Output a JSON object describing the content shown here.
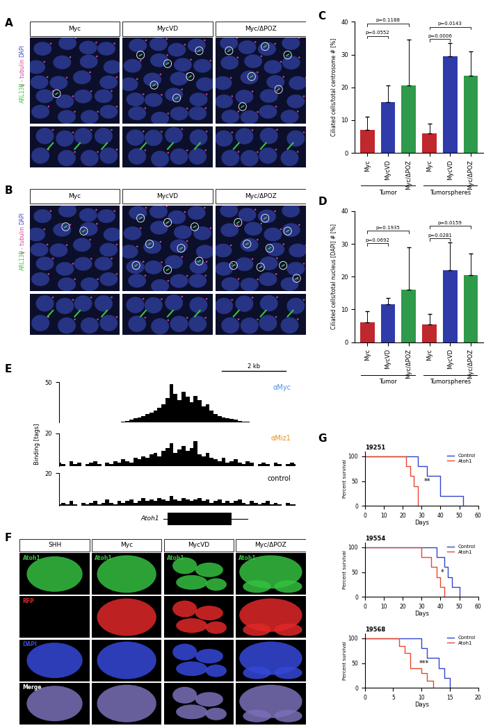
{
  "panel_labels": [
    "A",
    "B",
    "C",
    "D",
    "E",
    "F",
    "G"
  ],
  "micrographs": [
    {
      "columns": [
        "Myc",
        "MycVD",
        "Myc/ΔPOZ"
      ],
      "channels": [
        {
          "name": "DAPI",
          "color": "#3b4cc0"
        },
        {
          "name": "γ - tubulin",
          "color": "#d0409a"
        },
        {
          "name": "ARL13B",
          "color": "#3cc43c"
        }
      ]
    },
    {
      "columns": [
        "Myc",
        "MycVD",
        "Myc/ΔPOZ"
      ],
      "channels": [
        {
          "name": "DAPI",
          "color": "#3b4cc0"
        },
        {
          "name": "γ - tubulin",
          "color": "#d0409a"
        },
        {
          "name": "ARL13B",
          "color": "#3cc43c"
        }
      ]
    }
  ],
  "image_grid": {
    "columns": [
      "SHH",
      "Myc",
      "MycVD",
      "Myc/ΔPOZ"
    ],
    "rows": [
      {
        "name": "Atoh1",
        "color": "#35c040"
      },
      {
        "name": "RFP",
        "color": "#e02828"
      },
      {
        "name": "DAPI",
        "color": "#3548d8"
      },
      {
        "name": "Merge",
        "color": "#7a6fb8"
      }
    ]
  },
  "chart_data": [
    {
      "type": "bar",
      "ylabel": "Ciliated cells/total centrosome # [%]",
      "categories": [
        "Myc",
        "MycVD",
        "Myc/ΔPOZ",
        "Myc",
        "MycVD",
        "Myc/ΔPOZ"
      ],
      "groups": [
        "Tumor",
        "Tumorspheres"
      ],
      "values": [
        7,
        15.5,
        20.5,
        6,
        29.5,
        23.5
      ],
      "errors": [
        4,
        5,
        14,
        3,
        4,
        7.5
      ],
      "colors": [
        "#c0282d",
        "#2e3ba8",
        "#2f9a4a",
        "#c0282d",
        "#2e3ba8",
        "#2f9a4a"
      ],
      "ylim": [
        0,
        40
      ],
      "yticks": [
        0,
        10,
        20,
        30,
        40
      ],
      "comparisons": [
        {
          "pair": [
            0,
            1
          ],
          "label": "p=0.0552"
        },
        {
          "pair": [
            0,
            2
          ],
          "label": "p=0.1188"
        },
        {
          "pair": [
            3,
            4
          ],
          "label": "p=0.0006"
        },
        {
          "pair": [
            3,
            5
          ],
          "label": "p=0.0143"
        }
      ]
    },
    {
      "type": "bar",
      "ylabel": "Ciliated cells/total nucleus [DAPI] # [%]",
      "categories": [
        "Myc",
        "MycVD",
        "Myc/ΔPOZ",
        "Myc",
        "MycVD",
        "Myc/ΔPOZ"
      ],
      "groups": [
        "Tumor",
        "Tumorspheres"
      ],
      "values": [
        6,
        11.5,
        16,
        5.5,
        22,
        20.5
      ],
      "errors": [
        3.5,
        2,
        13,
        3,
        8.5,
        6.5
      ],
      "colors": [
        "#c0282d",
        "#2e3ba8",
        "#2f9a4a",
        "#c0282d",
        "#2e3ba8",
        "#2f9a4a"
      ],
      "ylim": [
        0,
        40
      ],
      "yticks": [
        0,
        10,
        20,
        30,
        40
      ],
      "comparisons": [
        {
          "pair": [
            0,
            1
          ],
          "label": "p=0.0692"
        },
        {
          "pair": [
            0,
            2
          ],
          "label": "p=0.1935"
        },
        {
          "pair": [
            3,
            4
          ],
          "label": "p=0.0281"
        },
        {
          "pair": [
            3,
            5
          ],
          "label": "p=0.0159"
        }
      ]
    },
    {
      "type": "track",
      "ylabel": "Binding [tags]",
      "scale_bar": "2 kb",
      "gene": {
        "name": "Atoh1",
        "start": 27,
        "end": 43
      },
      "series": [
        {
          "name": "αMyc",
          "color": "#4a90e2",
          "ylim": [
            0,
            50
          ],
          "yticks": [
            50
          ],
          "values": [
            0,
            0,
            0,
            0,
            0,
            0,
            0,
            0,
            0,
            0,
            0,
            0,
            0,
            0,
            0,
            0,
            1,
            2,
            3,
            5,
            6,
            8,
            10,
            12,
            15,
            18,
            22,
            30,
            48,
            35,
            28,
            38,
            32,
            25,
            33,
            28,
            20,
            22,
            15,
            10,
            8,
            6,
            5,
            4,
            3,
            2,
            1,
            1,
            0,
            0,
            0,
            0,
            0,
            0,
            0,
            0,
            0,
            0,
            0,
            0
          ]
        },
        {
          "name": "αMiz1",
          "color": "#e8901a",
          "ylim": [
            0,
            20
          ],
          "yticks": [
            20
          ],
          "values": [
            2,
            1,
            0,
            3,
            1,
            2,
            0,
            1,
            2,
            3,
            1,
            0,
            2,
            1,
            3,
            2,
            4,
            3,
            2,
            5,
            4,
            6,
            5,
            7,
            8,
            6,
            9,
            11,
            14,
            8,
            10,
            12,
            9,
            11,
            15,
            7,
            6,
            8,
            5,
            4,
            3,
            5,
            2,
            3,
            4,
            2,
            1,
            3,
            2,
            0,
            1,
            2,
            1,
            0,
            2,
            1,
            0,
            1,
            2,
            1
          ]
        },
        {
          "name": "control",
          "color": "#000000",
          "ylim": [
            0,
            20
          ],
          "yticks": [
            20
          ],
          "values": [
            1,
            2,
            1,
            3,
            1,
            0,
            2,
            1,
            2,
            3,
            1,
            2,
            4,
            2,
            1,
            3,
            2,
            3,
            4,
            2,
            3,
            5,
            3,
            4,
            3,
            5,
            4,
            3,
            6,
            4,
            3,
            5,
            4,
            3,
            4,
            5,
            3,
            4,
            2,
            3,
            4,
            2,
            3,
            2,
            3,
            4,
            2,
            1,
            3,
            2,
            1,
            2,
            3,
            1,
            2,
            1,
            0,
            2,
            1,
            1
          ]
        }
      ]
    },
    {
      "type": "step",
      "title": "19251",
      "xlabel": "Days",
      "ylabel": "Percent survival",
      "xlim": [
        0,
        60
      ],
      "xticks": [
        0,
        10,
        20,
        30,
        40,
        50,
        60
      ],
      "ylim": [
        0,
        110
      ],
      "yticks": [
        0,
        50,
        100
      ],
      "legend": "upper right",
      "annotations": [
        "**"
      ],
      "series": [
        {
          "name": "Control",
          "color": "#3344cc",
          "x": [
            0,
            28,
            33,
            40,
            52
          ],
          "values": [
            100,
            80,
            60,
            20,
            0
          ]
        },
        {
          "name": "Atoh1",
          "color": "#e8472b",
          "x": [
            0,
            22,
            24,
            26,
            28
          ],
          "values": [
            100,
            80,
            60,
            40,
            0
          ]
        }
      ]
    },
    {
      "type": "step",
      "title": "19554",
      "xlabel": "Days",
      "ylabel": "Percent survival",
      "xlim": [
        0,
        60
      ],
      "xticks": [
        0,
        10,
        20,
        30,
        40,
        50,
        60
      ],
      "ylim": [
        0,
        110
      ],
      "yticks": [
        0,
        50,
        100
      ],
      "legend": "upper right",
      "annotations": [
        "*"
      ],
      "series": [
        {
          "name": "Control",
          "color": "#3344cc",
          "x": [
            0,
            38,
            42,
            44,
            46,
            50
          ],
          "values": [
            100,
            80,
            60,
            40,
            20,
            0
          ]
        },
        {
          "name": "Atoh1",
          "color": "#e8472b",
          "x": [
            0,
            30,
            35,
            38,
            40,
            42
          ],
          "values": [
            100,
            80,
            60,
            40,
            20,
            0
          ]
        }
      ]
    },
    {
      "type": "step",
      "title": "19568",
      "xlabel": "Days",
      "ylabel": "Percent survival",
      "xlim": [
        0,
        20
      ],
      "xticks": [
        0,
        5,
        10,
        15,
        20
      ],
      "ylim": [
        0,
        110
      ],
      "yticks": [
        0,
        50,
        100
      ],
      "legend": "upper right",
      "annotations": [
        "***"
      ],
      "series": [
        {
          "name": "Control",
          "color": "#3344cc",
          "x": [
            0,
            10,
            11,
            13,
            14,
            15
          ],
          "values": [
            100,
            80,
            60,
            40,
            20,
            0
          ]
        },
        {
          "name": "Atoh1",
          "color": "#e8472b",
          "x": [
            0,
            6,
            7,
            8,
            10,
            11,
            12
          ],
          "values": [
            100,
            85,
            70,
            40,
            30,
            15,
            0
          ]
        }
      ]
    }
  ]
}
